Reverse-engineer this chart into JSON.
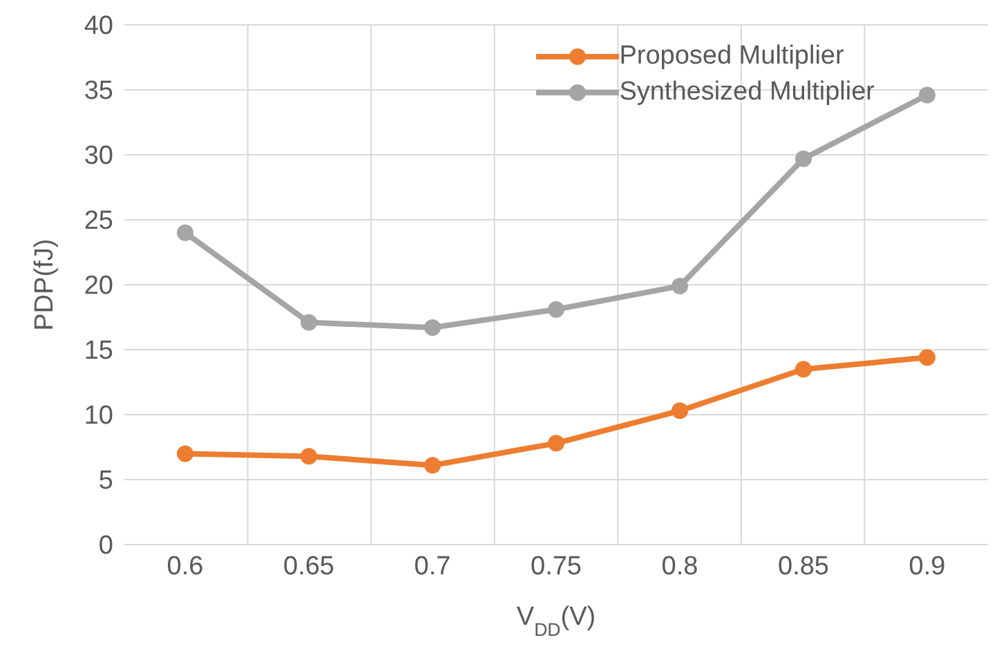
{
  "chart_data": {
    "type": "line",
    "xlabel": "V$_{DD}$(V)",
    "ylabel": "PDP(fJ)",
    "categories": [
      "0.6",
      "0.65",
      "0.7",
      "0.75",
      "0.8",
      "0.85",
      "0.9"
    ],
    "series": [
      {
        "name": "Proposed Multiplier",
        "color": "#ed7d31",
        "values": [
          7.0,
          6.8,
          6.1,
          7.8,
          10.3,
          13.5,
          14.4
        ]
      },
      {
        "name": "Synthesized Multiplier",
        "color": "#a5a5a5",
        "values": [
          24.0,
          17.1,
          16.7,
          18.1,
          19.9,
          29.7,
          34.6
        ]
      }
    ],
    "ylim": [
      0,
      40
    ],
    "yticks": [
      0,
      5,
      10,
      15,
      20,
      25,
      30,
      35,
      40
    ],
    "grid": true,
    "legend": "top right",
    "marker": "circle",
    "line_style": "solid"
  }
}
